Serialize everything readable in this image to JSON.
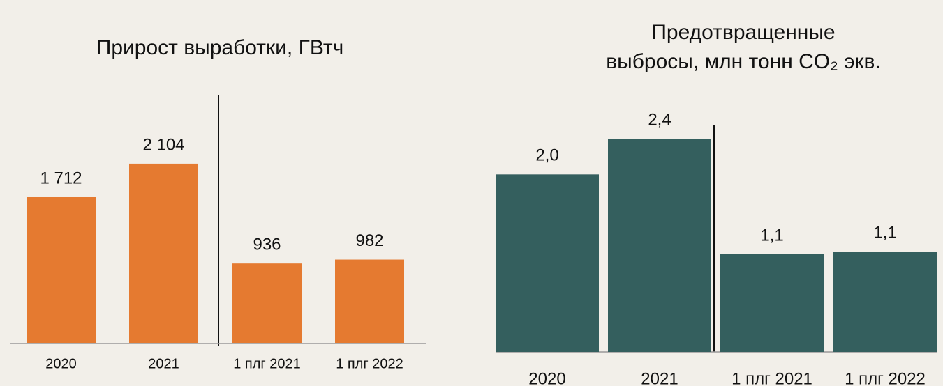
{
  "chart_data": [
    {
      "type": "bar",
      "title": "Прирост выработки, ГВтч",
      "categories": [
        "2020",
        "2021",
        "1 плг 2021",
        "1 плг 2022"
      ],
      "values": [
        1712,
        2104,
        936,
        982
      ],
      "value_labels": [
        "1 712",
        "2 104",
        "936",
        "982"
      ],
      "color": "#e57a30",
      "ylim": [
        0,
        3000
      ]
    },
    {
      "type": "bar",
      "title": [
        "Предотвращенные",
        "выбросы, млн тонн CO₂ экв."
      ],
      "categories": [
        "2020",
        "2021",
        "1 плг 2021",
        "1 плг 2022"
      ],
      "values": [
        2.0,
        2.4,
        1.1,
        1.13
      ],
      "value_labels": [
        "2,0",
        "2,4",
        "1,1",
        "1,1"
      ],
      "color": "#345f5e",
      "ylim": [
        0,
        3
      ]
    }
  ]
}
